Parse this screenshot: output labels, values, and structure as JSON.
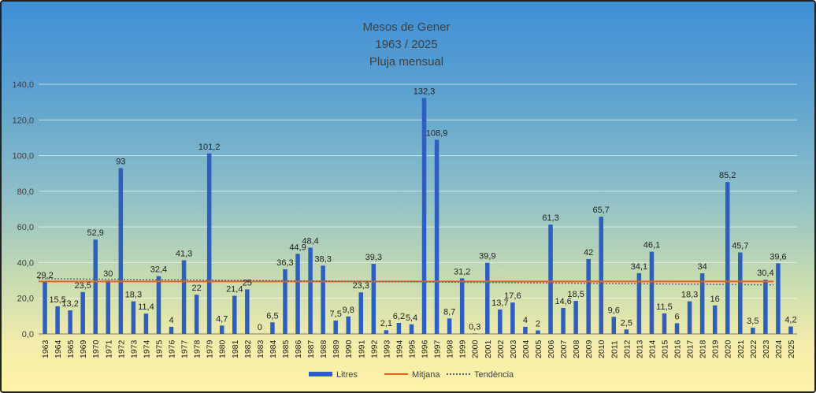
{
  "chart_data": {
    "type": "bar",
    "title_lines": [
      "Mesos de Gener",
      "1963 / 2025",
      "Pluja mensual"
    ],
    "categories": [
      "1963",
      "1964",
      "1965",
      "1969",
      "1970",
      "1971",
      "1972",
      "1973",
      "1974",
      "1975",
      "1976",
      "1977",
      "1978",
      "1979",
      "1980",
      "1981",
      "1982",
      "1983",
      "1984",
      "1985",
      "1986",
      "1987",
      "1988",
      "1989",
      "1990",
      "1991",
      "1992",
      "1993",
      "1994",
      "1995",
      "1996",
      "1997",
      "1998",
      "1999",
      "2000",
      "2001",
      "2002",
      "2003",
      "2004",
      "2005",
      "2006",
      "2007",
      "2008",
      "2009",
      "2010",
      "2011",
      "2012",
      "2013",
      "2014",
      "2015",
      "2016",
      "2017",
      "2018",
      "2019",
      "2020",
      "2021",
      "2022",
      "2023",
      "2024",
      "2025"
    ],
    "series": [
      {
        "name": "Litres",
        "type": "bar",
        "values": [
          29.2,
          15.5,
          13.2,
          23.5,
          52.9,
          30,
          93,
          18.3,
          11.4,
          32.4,
          4,
          41.3,
          22,
          101.2,
          4.7,
          21.4,
          25,
          0,
          6.5,
          36.3,
          44.9,
          48.4,
          38.3,
          7.5,
          9.8,
          23.3,
          39.3,
          2.1,
          6.2,
          5.4,
          132.3,
          108.9,
          8.7,
          31.2,
          0.3,
          39.9,
          13.7,
          17.6,
          4,
          2,
          61.3,
          14.6,
          18.5,
          42,
          65.7,
          9.6,
          2.5,
          34.1,
          46.1,
          11.5,
          6,
          18.3,
          34,
          16,
          85.2,
          45.7,
          3.5,
          30.4,
          39.6,
          4.2
        ]
      },
      {
        "name": "Mitjana",
        "type": "line",
        "values_constant": 29.4
      },
      {
        "name": "Tendència",
        "type": "line-dotted",
        "start": 31.0,
        "end": 27.5
      }
    ],
    "data_labels": [
      "29,2",
      "15,5",
      "13,2",
      "23,5",
      "52,9",
      "30",
      "93",
      "18,3",
      "11,4",
      "32,4",
      "4",
      "41,3",
      "22",
      "101,2",
      "4,7",
      "21,4",
      "25",
      "0",
      "6,5",
      "36,3",
      "44,9",
      "48,4",
      "38,3",
      "7,5",
      "9,8",
      "23,3",
      "39,3",
      "2,1",
      "6,2",
      "5,4",
      "132,3",
      "108,9",
      "8,7",
      "31,2",
      "0,3",
      "39,9",
      "13,7",
      "17,6",
      "4",
      "2",
      "61,3",
      "14,6",
      "18,5",
      "42",
      "65,7",
      "9,6",
      "2,5",
      "34,1",
      "46,1",
      "11,5",
      "6",
      "18,3",
      "34",
      "16",
      "85,2",
      "45,7",
      "3,5",
      "30,4",
      "39,6",
      "4,2"
    ],
    "y_ticks": [
      "0,0",
      "20,0",
      "40,0",
      "60,0",
      "80,0",
      "100,0",
      "120,0",
      "140,0"
    ],
    "ylim": [
      0,
      140
    ],
    "grid": true,
    "legend_position": "bottom",
    "colors": {
      "bar": "#2e5fbf",
      "mean": "#e8601c",
      "trend": "#5a6e7a"
    }
  }
}
